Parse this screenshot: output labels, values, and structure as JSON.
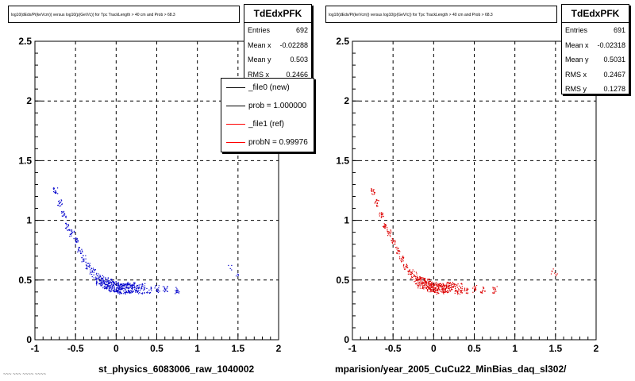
{
  "panels": [
    {
      "title": "log10(dEdx/Pi(keVcm)) versus log10(p(GeV/c)) for Tpc TrackLength > 40 cm and Prob > 68.3",
      "stats": {
        "name": "TdEdxPFK",
        "rows": [
          {
            "label": "Entries",
            "value": "692"
          },
          {
            "label": "Mean x",
            "value": "-0.02288"
          },
          {
            "label": "Mean y",
            "value": "0.503"
          },
          {
            "label": "RMS x",
            "value": "0.2466"
          }
        ]
      },
      "legend": [
        {
          "label": "_file0 (new)",
          "color": "#000000"
        },
        {
          "label": "prob = 1.000000",
          "color": "#000000"
        },
        {
          "label": "_file1 (ref)",
          "color": "#ff0000"
        },
        {
          "label": "probN = 0.99976",
          "color": "#ff0000"
        }
      ],
      "xtitle": "st_physics_6083006_raw_1040002",
      "marker_color": "#0000cc"
    },
    {
      "title": "log10(dEdx/Pi(keVcm)) versus log10(p(GeV/c)) for Tpc TrackLength > 40 cm and Prob > 68.3",
      "stats": {
        "name": "TdEdxPFK",
        "rows": [
          {
            "label": "Entries",
            "value": "691"
          },
          {
            "label": "Mean x",
            "value": "-0.02318"
          },
          {
            "label": "Mean y",
            "value": "0.5031"
          },
          {
            "label": "RMS x",
            "value": "0.2467"
          },
          {
            "label": "RMS y",
            "value": "0.1278"
          }
        ]
      },
      "xtitle": "mparision/year_2005_CuCu22_MinBias_daq_sl302/",
      "marker_color": "#dd0000"
    }
  ],
  "footer": "~~~ ~~~ ~~~~ ~~~~",
  "chart_data": [
    {
      "type": "scatter",
      "xlim": [
        -1,
        2
      ],
      "ylim": [
        0,
        2.5
      ],
      "xticks": [
        "-1",
        "-0.5",
        "0",
        "0.5",
        "1",
        "1.5",
        "2"
      ],
      "yticks": [
        "0",
        "0.5",
        "1",
        "1.5",
        "2",
        "2.5"
      ],
      "grid": true,
      "series": [
        {
          "x": [
            -0.75,
            -0.7,
            -0.65,
            -0.6,
            -0.55,
            -0.5,
            -0.45,
            -0.4,
            -0.35,
            -0.3,
            -0.25,
            -0.2,
            -0.15,
            -0.1,
            -0.05,
            0,
            0.05,
            0.1,
            0.15,
            0.2,
            0.3,
            0.4,
            0.5,
            0.6,
            0.75,
            1.4,
            1.5
          ],
          "y": [
            1.25,
            1.15,
            1.05,
            0.95,
            0.9,
            0.83,
            0.75,
            0.68,
            0.62,
            0.58,
            0.55,
            0.5,
            0.48,
            0.47,
            0.45,
            0.44,
            0.43,
            0.43,
            0.44,
            0.44,
            0.43,
            0.42,
            0.43,
            0.42,
            0.42,
            0.6,
            0.55
          ]
        }
      ]
    },
    {
      "type": "scatter",
      "xlim": [
        -1,
        2
      ],
      "ylim": [
        0,
        2.5
      ],
      "xticks": [
        "-1",
        "-0.5",
        "0",
        "0.5",
        "1",
        "1.5",
        "2"
      ],
      "yticks": [
        "0",
        "0.5",
        "1",
        "1.5",
        "2",
        "2.5"
      ],
      "grid": true,
      "series": [
        {
          "x": [
            -0.75,
            -0.7,
            -0.65,
            -0.6,
            -0.55,
            -0.5,
            -0.45,
            -0.4,
            -0.35,
            -0.3,
            -0.25,
            -0.2,
            -0.15,
            -0.1,
            -0.05,
            0,
            0.05,
            0.1,
            0.15,
            0.2,
            0.3,
            0.4,
            0.5,
            0.6,
            0.75,
            1.45,
            1.5
          ],
          "y": [
            1.25,
            1.15,
            1.05,
            0.95,
            0.9,
            0.83,
            0.75,
            0.68,
            0.62,
            0.58,
            0.55,
            0.5,
            0.48,
            0.47,
            0.45,
            0.44,
            0.43,
            0.43,
            0.44,
            0.44,
            0.43,
            0.42,
            0.43,
            0.42,
            0.42,
            0.58,
            0.55
          ]
        }
      ]
    }
  ]
}
